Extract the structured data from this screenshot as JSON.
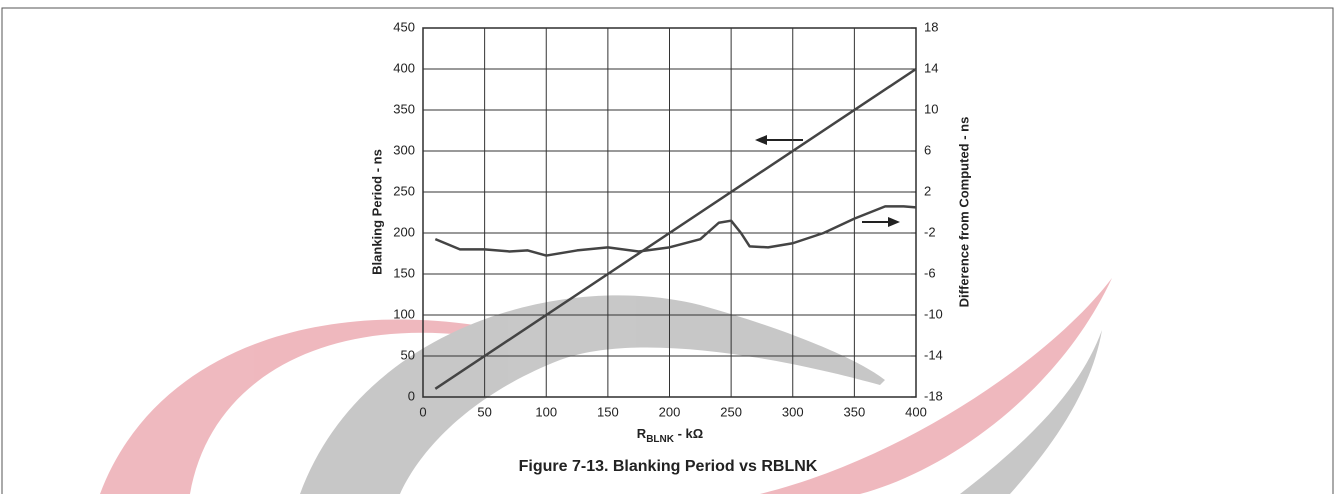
{
  "chart_data": {
    "type": "line",
    "caption": "Figure 7-13. Blanking Period vs RBLNK",
    "xlabel": [
      "R",
      "BLNK",
      " - kΩ"
    ],
    "ylabel": "Blanking Period - ns",
    "y2label": "Difference from Computed - ns",
    "xlim": [
      0,
      400
    ],
    "xticks": [
      0,
      50,
      100,
      150,
      200,
      250,
      300,
      350,
      400
    ],
    "ylim": [
      0,
      450
    ],
    "yticks": [
      0,
      50,
      100,
      150,
      200,
      250,
      300,
      350,
      400,
      450
    ],
    "y2lim": [
      -18,
      18
    ],
    "y2ticks": [
      -18,
      -14,
      -10,
      -6,
      -2,
      2,
      6,
      10,
      14,
      18
    ],
    "grid": true,
    "series": [
      {
        "color": "#444444",
        "x": [
          10,
          400
        ],
        "values": [
          10,
          400
        ]
      },
      {
        "color": "#444444",
        "axis": "y2",
        "x": [
          10,
          30,
          50,
          70,
          85,
          100,
          125,
          150,
          175,
          200,
          225,
          240,
          250,
          258,
          265,
          280,
          300,
          325,
          350,
          375,
          390,
          400
        ],
        "values": [
          -2.6,
          -3.6,
          -3.6,
          -3.8,
          -3.7,
          -4.2,
          -3.7,
          -3.4,
          -3.8,
          -3.4,
          -2.6,
          -1.0,
          -0.8,
          -2.0,
          -3.3,
          -3.4,
          -3.0,
          -2.0,
          -0.6,
          0.6,
          0.6,
          0.5
        ]
      }
    ]
  }
}
